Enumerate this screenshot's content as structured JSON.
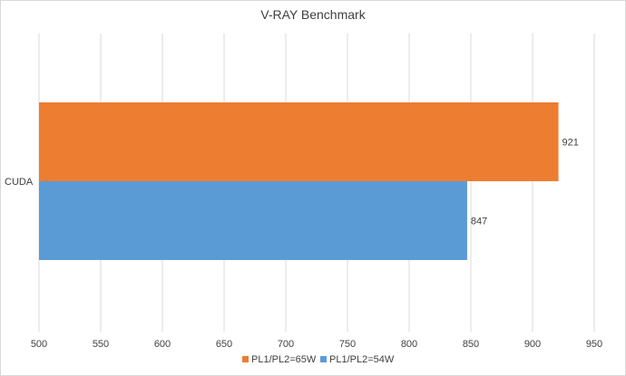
{
  "chart_data": {
    "type": "bar",
    "orientation": "horizontal",
    "title": "V-RAY Benchmark",
    "categories": [
      "CUDA"
    ],
    "series": [
      {
        "name": "PL1/PL2=65W",
        "values": [
          921
        ],
        "color": "#ED7D31"
      },
      {
        "name": "PL1/PL2=54W",
        "values": [
          847
        ],
        "color": "#5B9BD5"
      }
    ],
    "xlim": [
      500,
      950
    ],
    "x_ticks": [
      500,
      550,
      600,
      650,
      700,
      750,
      800,
      850,
      900,
      950
    ],
    "grid": true,
    "legend_position": "bottom"
  }
}
